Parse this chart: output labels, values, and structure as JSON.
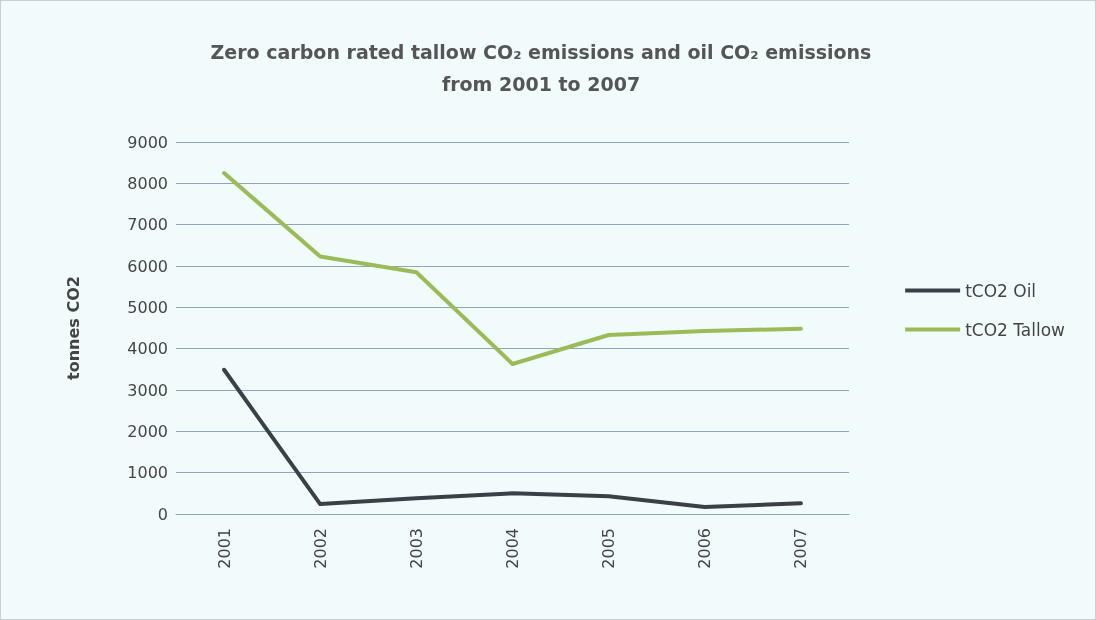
{
  "chart_data": {
    "type": "line",
    "title": "Zero carbon rated tallow CO₂ emissions and oil CO₂ emissions\nfrom 2001 to 2007",
    "ylabel": "tonnes CO2",
    "categories": [
      "2001",
      "2002",
      "2003",
      "2004",
      "2005",
      "2006",
      "2007"
    ],
    "series": [
      {
        "name": "tCO2 Oil",
        "color": "#3b4046",
        "values": [
          3490,
          240,
          380,
          500,
          430,
          170,
          260
        ]
      },
      {
        "name": "tCO2 Tallow",
        "color": "#9bbb59",
        "values": [
          8250,
          6230,
          5850,
          3630,
          4330,
          4430,
          4480
        ]
      }
    ],
    "ylim": [
      0,
      9000
    ],
    "yticks": [
      0,
      1000,
      2000,
      3000,
      4000,
      5000,
      6000,
      7000,
      8000,
      9000
    ],
    "grid": "y",
    "legend": "right",
    "marker": "none",
    "line_style": "solid"
  }
}
